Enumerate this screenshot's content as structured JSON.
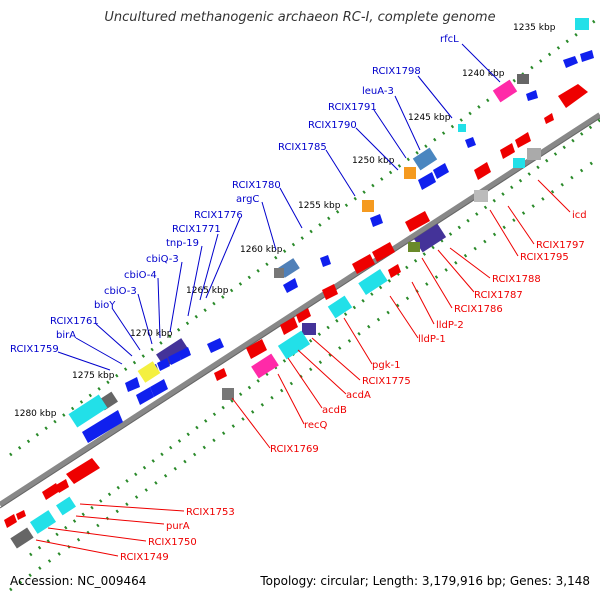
{
  "title": "Uncultured methanogenic archaeon RC-I, complete genome",
  "footer": {
    "accession": "Accession: NC_009464",
    "summary": "Topology: circular; Length: 3,179,916 bp; Genes: 3,148"
  },
  "colors": {
    "backbone": "#888888",
    "forward": "#0000cc",
    "reverse": "#ee0000",
    "tick": "#008800"
  },
  "ticks": [
    "1235 kbp",
    "1240 kbp",
    "1245 kbp",
    "1250 kbp",
    "1255 kbp",
    "1260 kbp",
    "1265 kbp",
    "1270 kbp",
    "1275 kbp",
    "1280 kbp"
  ],
  "labels_blue": [
    "rfcL",
    "RCIX1798",
    "leuA-3",
    "RCIX1791",
    "RCIX1790",
    "RCIX1785",
    "RCIX1780",
    "argC",
    "RCIX1776",
    "RCIX1771",
    "tnp-19",
    "cbiQ-3",
    "cbiO-4",
    "cbiO-3",
    "bioY",
    "RCIX1761",
    "birA",
    "RCIX1759"
  ],
  "labels_red": [
    "icd",
    "RCIX1797",
    "RCIX1795",
    "RCIX1788",
    "RCIX1787",
    "RCIX1786",
    "lldP-2",
    "lldP-1",
    "pgk-1",
    "RCIX1775",
    "acdA",
    "acdB",
    "recQ",
    "RCIX1769",
    "RCIX1753",
    "purA",
    "RCIX1750",
    "RCIX1749"
  ]
}
